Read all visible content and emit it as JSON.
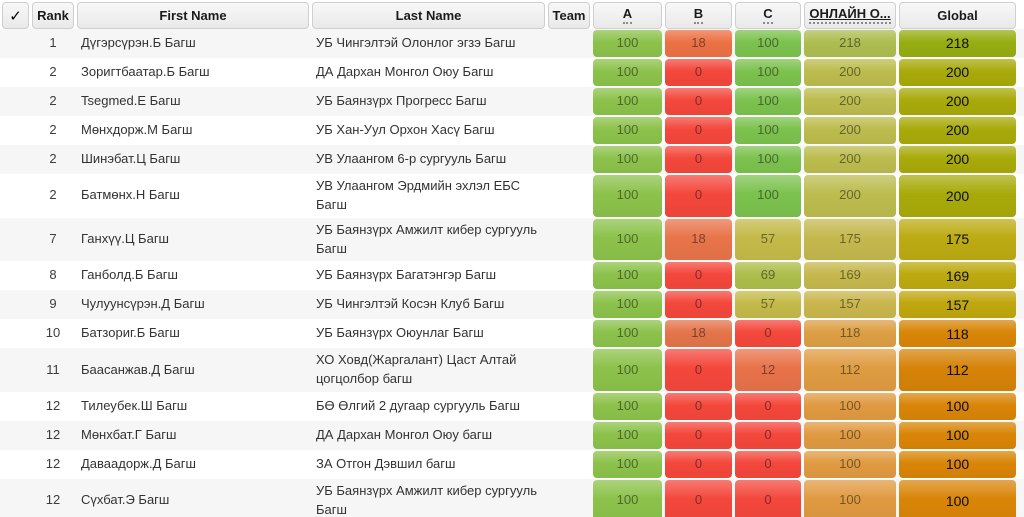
{
  "header": {
    "check_label": "✓",
    "columns": {
      "rank": "Rank",
      "first_name": "First Name",
      "last_name": "Last Name",
      "team": "Team",
      "a": "A",
      "b": "B",
      "c": "C",
      "online": "ОНЛАЙН О...",
      "global": "Global"
    }
  },
  "palette": {
    "score_green": "#8cc24b",
    "score_red": "#f4473c",
    "score_orange": "#ea7347",
    "header_bg": "#ededed",
    "row_stripe": "#f6f6f6"
  },
  "table": {
    "rows": [
      {
        "rank": "1",
        "first": "Дүгэрсүрэн.Б Багш",
        "last": "УБ Чингэлтэй Олонлог эгзэ Багш",
        "team": "",
        "a": {
          "v": "100",
          "bg": "#8cc24b"
        },
        "b": {
          "v": "18",
          "bg": "#ec7144"
        },
        "c": {
          "v": "100",
          "bg": "#7cc24e"
        },
        "online": {
          "v": "218",
          "bg": "#aebd51"
        },
        "global": {
          "v": "218",
          "bg": "#97ad12"
        }
      },
      {
        "rank": "2",
        "first": "Зоригтбаатар.Б Багш",
        "last": "ДА Дархан Монгол Оюу Багш",
        "team": "",
        "a": {
          "v": "100",
          "bg": "#8cc24b"
        },
        "b": {
          "v": "0",
          "bg": "#f4473c"
        },
        "c": {
          "v": "100",
          "bg": "#7cc24e"
        },
        "online": {
          "v": "200",
          "bg": "#bcbc4e"
        },
        "global": {
          "v": "200",
          "bg": "#a8aa0a"
        }
      },
      {
        "rank": "2",
        "first": "Tsegmed.E Багш",
        "last": "УБ Баянзүрх Прогресс Багш",
        "team": "",
        "a": {
          "v": "100",
          "bg": "#8cc24b"
        },
        "b": {
          "v": "0",
          "bg": "#f4473c"
        },
        "c": {
          "v": "100",
          "bg": "#7cc24e"
        },
        "online": {
          "v": "200",
          "bg": "#bcbc4e"
        },
        "global": {
          "v": "200",
          "bg": "#a8aa0a"
        }
      },
      {
        "rank": "2",
        "first": "Мөнхдорж.М Багш",
        "last": "УБ Хан-Уул Орхон Хасү Багш",
        "team": "",
        "a": {
          "v": "100",
          "bg": "#8cc24b"
        },
        "b": {
          "v": "0",
          "bg": "#f4473c"
        },
        "c": {
          "v": "100",
          "bg": "#7cc24e"
        },
        "online": {
          "v": "200",
          "bg": "#bcbc4e"
        },
        "global": {
          "v": "200",
          "bg": "#a8aa0a"
        }
      },
      {
        "rank": "2",
        "first": "Шинэбат.Ц Багш",
        "last": "УВ Улаангом 6-р сургууль Багш",
        "team": "",
        "a": {
          "v": "100",
          "bg": "#8cc24b"
        },
        "b": {
          "v": "0",
          "bg": "#f4473c"
        },
        "c": {
          "v": "100",
          "bg": "#7cc24e"
        },
        "online": {
          "v": "200",
          "bg": "#bcbc4e"
        },
        "global": {
          "v": "200",
          "bg": "#a8aa0a"
        }
      },
      {
        "rank": "2",
        "first": "Батмөнх.Н Багш",
        "last": "УВ Улаангом Эрдмийн эхлэл ЕБС Багш",
        "team": "",
        "a": {
          "v": "100",
          "bg": "#8cc24b"
        },
        "b": {
          "v": "0",
          "bg": "#f4473c"
        },
        "c": {
          "v": "100",
          "bg": "#7cc24e"
        },
        "online": {
          "v": "200",
          "bg": "#bcbc4e"
        },
        "global": {
          "v": "200",
          "bg": "#a8aa0a"
        }
      },
      {
        "rank": "7",
        "first": "Ганхүү.Ц Багш",
        "last": "УБ Баянзүрх Амжилт кибер сургууль Багш",
        "team": "",
        "a": {
          "v": "100",
          "bg": "#8cc24b"
        },
        "b": {
          "v": "18",
          "bg": "#e8744a"
        },
        "c": {
          "v": "57",
          "bg": "#c4ba49"
        },
        "online": {
          "v": "175",
          "bg": "#c4b84d"
        },
        "global": {
          "v": "175",
          "bg": "#bcab12"
        }
      },
      {
        "rank": "8",
        "first": "Ганболд.Б Багш",
        "last": "УБ Баянзүрх Багатэнгэр Багш",
        "team": "",
        "a": {
          "v": "100",
          "bg": "#8cc24b"
        },
        "b": {
          "v": "0",
          "bg": "#f4473c"
        },
        "c": {
          "v": "69",
          "bg": "#adbe4b"
        },
        "online": {
          "v": "169",
          "bg": "#c6b84d"
        },
        "global": {
          "v": "169",
          "bg": "#bdaa10"
        }
      },
      {
        "rank": "9",
        "first": "Чулуунсүрэн.Д Багш",
        "last": "УБ Чингэлтэй Косэн Клуб Багш",
        "team": "",
        "a": {
          "v": "100",
          "bg": "#8cc24b"
        },
        "b": {
          "v": "0",
          "bg": "#f4473c"
        },
        "c": {
          "v": "57",
          "bg": "#c4ba49"
        },
        "online": {
          "v": "157",
          "bg": "#c9b64c"
        },
        "global": {
          "v": "157",
          "bg": "#c0a70e"
        }
      },
      {
        "rank": "10",
        "first": "Батзориг.Б Багш",
        "last": "УБ Баянзүрх Оюунлаг Багш",
        "team": "",
        "a": {
          "v": "100",
          "bg": "#8cc24b"
        },
        "b": {
          "v": "18",
          "bg": "#e4744a"
        },
        "c": {
          "v": "0",
          "bg": "#f4483c"
        },
        "online": {
          "v": "118",
          "bg": "#dd9f44"
        },
        "global": {
          "v": "118",
          "bg": "#d88607"
        }
      },
      {
        "rank": "11",
        "first": "Баасанжав.Д Багш",
        "last": "ХО Ховд(Жаргалант) Цаст Алтай цогцолбор багш",
        "team": "",
        "a": {
          "v": "100",
          "bg": "#8cc24b"
        },
        "b": {
          "v": "0",
          "bg": "#f4473c"
        },
        "c": {
          "v": "12",
          "bg": "#e8724a"
        },
        "online": {
          "v": "112",
          "bg": "#df9c42"
        },
        "global": {
          "v": "112",
          "bg": "#d68307"
        }
      },
      {
        "rank": "12",
        "first": "Тилеубек.Ш Багш",
        "last": "БӨ Өлгий 2 дугаар сургууль Багш",
        "team": "",
        "a": {
          "v": "100",
          "bg": "#8cc24b"
        },
        "b": {
          "v": "0",
          "bg": "#f4473c"
        },
        "c": {
          "v": "0",
          "bg": "#f4473c"
        },
        "online": {
          "v": "100",
          "bg": "#e09a41"
        },
        "global": {
          "v": "100",
          "bg": "#d98507"
        }
      },
      {
        "rank": "12",
        "first": "Мөнхбат.Г Багш",
        "last": "ДА Дархан Монгол Оюу багш",
        "team": "",
        "a": {
          "v": "100",
          "bg": "#8cc24b"
        },
        "b": {
          "v": "0",
          "bg": "#f4473c"
        },
        "c": {
          "v": "0",
          "bg": "#f4473c"
        },
        "online": {
          "v": "100",
          "bg": "#e09a41"
        },
        "global": {
          "v": "100",
          "bg": "#d98507"
        }
      },
      {
        "rank": "12",
        "first": "Даваадорж.Д Багш",
        "last": "ЗА Отгон Дэвшил багш",
        "team": "",
        "a": {
          "v": "100",
          "bg": "#8cc24b"
        },
        "b": {
          "v": "0",
          "bg": "#f4473c"
        },
        "c": {
          "v": "0",
          "bg": "#f4473c"
        },
        "online": {
          "v": "100",
          "bg": "#e09a41"
        },
        "global": {
          "v": "100",
          "bg": "#d98507"
        }
      },
      {
        "rank": "12",
        "first": "Сүхбат.Э Багш",
        "last": "УБ Баянзүрх Амжилт кибер сургууль Багш",
        "team": "",
        "a": {
          "v": "100",
          "bg": "#8cc24b"
        },
        "b": {
          "v": "0",
          "bg": "#f4473c"
        },
        "c": {
          "v": "0",
          "bg": "#f4473c"
        },
        "online": {
          "v": "100",
          "bg": "#e09a41"
        },
        "global": {
          "v": "100",
          "bg": "#d98507"
        }
      }
    ]
  }
}
